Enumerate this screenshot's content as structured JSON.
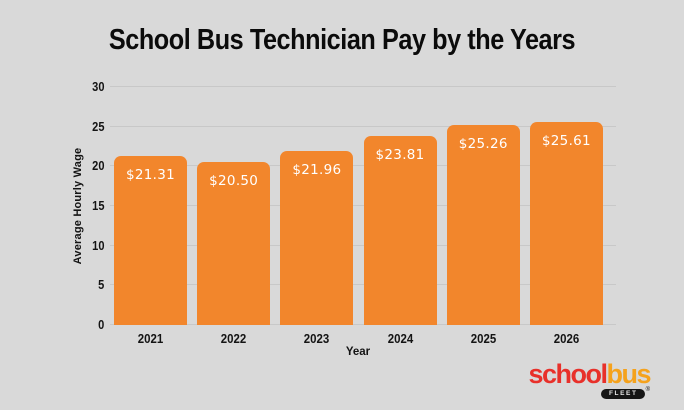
{
  "title": "School Bus Technician Pay by the Years",
  "chart_data": {
    "type": "bar",
    "title": "School Bus Technician Pay by the Years",
    "categories": [
      "2021",
      "2022",
      "2023",
      "2024",
      "2025",
      "2026"
    ],
    "values": [
      21.31,
      20.5,
      21.96,
      23.81,
      25.26,
      25.61
    ],
    "bar_labels": [
      "$21.31",
      "$20.50",
      "$21.96",
      "$23.81",
      "$25.26",
      "$25.61"
    ],
    "xlabel": "Year",
    "ylabel": "Average Hourly Wage",
    "ylim": [
      0,
      30
    ],
    "yticks": [
      0,
      5,
      10,
      15,
      20,
      25,
      30
    ],
    "grid": true,
    "legend": false,
    "bar_color": "#f2862c",
    "bar_label_color": "#ffffff"
  },
  "colors": {
    "background": "#d9d9d9",
    "gridline": "#c8c8c8",
    "text": "#111111"
  },
  "logo": {
    "word_part1": "school",
    "word_part2": "bus",
    "part1_color": "#e8302a",
    "part2_color": "#f5a21c",
    "badge_label": "FLEET",
    "reg_mark": "®"
  }
}
